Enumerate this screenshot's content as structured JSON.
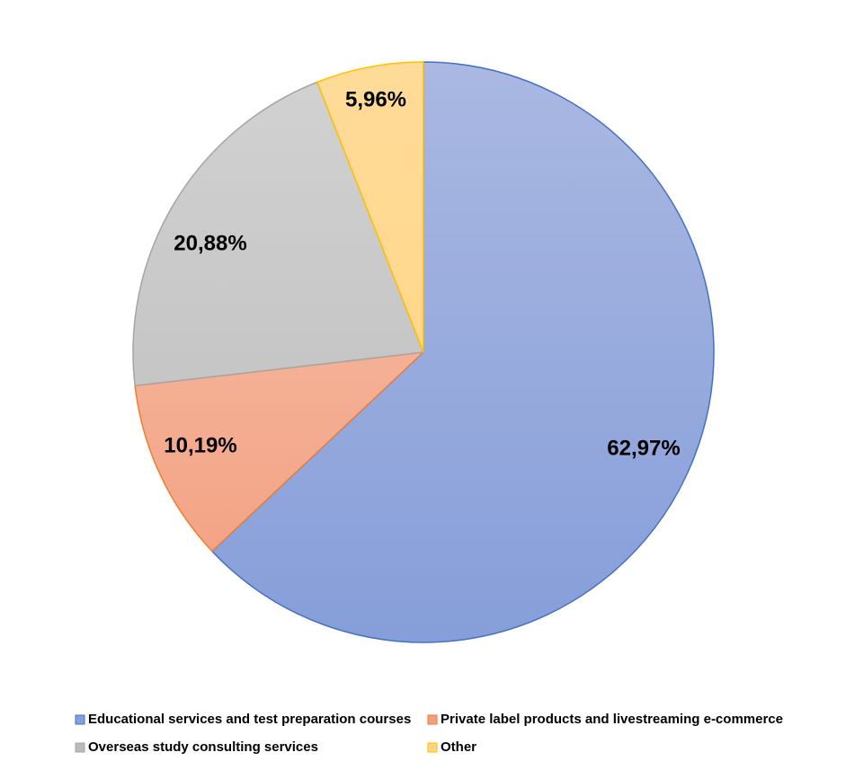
{
  "chart_data": {
    "type": "pie",
    "title": "",
    "series": [
      {
        "values": [
          62.97,
          10.19,
          20.88,
          5.96
        ]
      }
    ],
    "categories": [
      "Educational services and test preparation courses",
      "Private label products and livestreaming e-commerce",
      "Overseas study consulting services",
      "Other"
    ],
    "data_labels": [
      "62,97%",
      "10,19%",
      "20,88%",
      "5,96%"
    ],
    "start_angle_deg": 0,
    "direction": "clockwise",
    "colors": {
      "fill_top": [
        "#AAB8E2",
        "#F5C3AE",
        "#D2D2D2",
        "#FFDB99"
      ],
      "fill_bottom": [
        "#869ED9",
        "#F39E7E",
        "#BBBBBB",
        "#FFD57F"
      ],
      "stroke": [
        "#4472C4",
        "#ED7D31",
        "#A5A5A5",
        "#FFC000"
      ]
    },
    "legend": {
      "position": "bottom",
      "entries": [
        "Educational services and test preparation courses",
        "Private label products and livestreaming e-commerce",
        "Overseas study consulting services",
        "Other"
      ]
    }
  }
}
